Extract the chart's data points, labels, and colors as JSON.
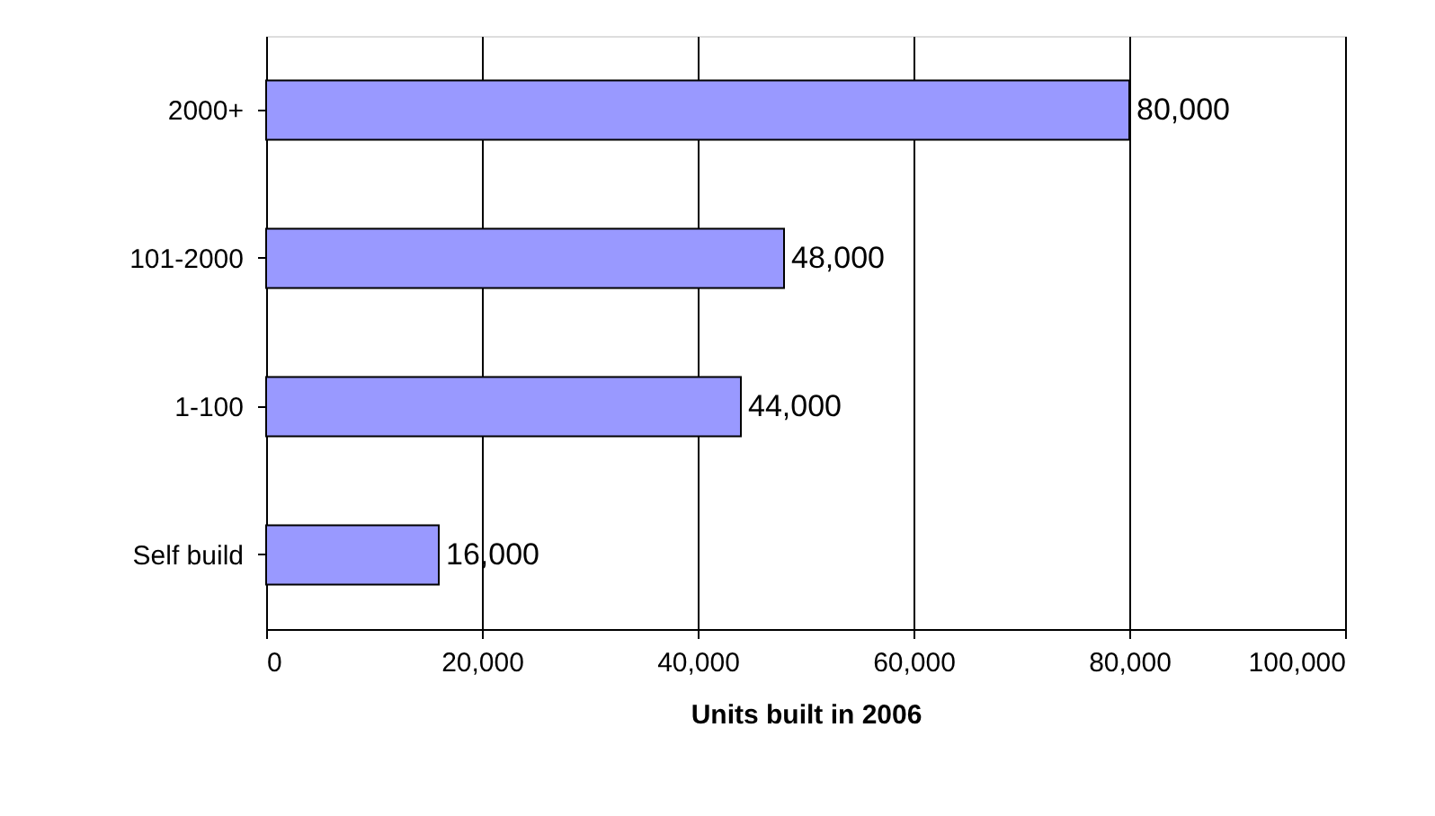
{
  "chart_data": {
    "type": "bar",
    "orientation": "horizontal",
    "xlabel": "Units built in 2006",
    "categories": [
      "2000+",
      "101-2000",
      "1-100",
      "Self build"
    ],
    "values": [
      80000,
      48000,
      44000,
      16000
    ],
    "value_labels": [
      "80,000",
      "48,000",
      "44,000",
      "16,000"
    ],
    "color": "#9999ff",
    "xlim": [
      0,
      100000
    ],
    "xticks": [
      0,
      {
        "value": 20000,
        "label": "20,000"
      },
      {
        "value": 40000,
        "label": "40,000"
      },
      {
        "value": 60000,
        "label": "60,000"
      },
      {
        "value": 80000,
        "label": "80,000"
      },
      {
        "value": 100000,
        "label": "100,000"
      }
    ],
    "grid": "x"
  }
}
